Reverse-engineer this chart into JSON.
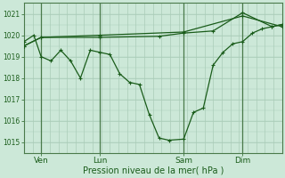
{
  "background_color": "#cce8d8",
  "grid_color": "#aaccb8",
  "line_color": "#1a5c1a",
  "marker_color": "#1a5c1a",
  "xlabel": "Pression niveau de la mer( hPa )",
  "ylim": [
    1014.5,
    1021.5
  ],
  "xlim": [
    0,
    210
  ],
  "yticks": [
    1015,
    1016,
    1017,
    1018,
    1019,
    1020,
    1021
  ],
  "xtick_labels": [
    "Ven",
    "Lun",
    "Sam",
    "Dim"
  ],
  "xtick_positions": [
    14,
    62,
    130,
    178
  ],
  "vline_positions": [
    14,
    62,
    130,
    178
  ],
  "series1_x": [
    0,
    8,
    14,
    22,
    30,
    38,
    46,
    54,
    62,
    70,
    78,
    86,
    94,
    102,
    110,
    118,
    130,
    138,
    146,
    154,
    162,
    170,
    178,
    186,
    194,
    202,
    210
  ],
  "series1_y": [
    1019.7,
    1020.0,
    1019.0,
    1018.8,
    1019.3,
    1018.8,
    1018.0,
    1019.3,
    1019.2,
    1019.1,
    1018.2,
    1017.8,
    1017.7,
    1016.3,
    1015.2,
    1015.1,
    1015.15,
    1016.4,
    1016.6,
    1018.6,
    1019.2,
    1019.6,
    1019.7,
    1020.1,
    1020.3,
    1020.4,
    1020.5
  ],
  "series2_x": [
    0,
    14,
    62,
    110,
    130,
    154,
    178,
    202,
    210
  ],
  "series2_y": [
    1019.5,
    1019.9,
    1019.9,
    1019.95,
    1020.1,
    1020.2,
    1021.05,
    1020.4,
    1020.5
  ],
  "series3_x": [
    0,
    14,
    62,
    130,
    178,
    210
  ],
  "series3_y": [
    1019.5,
    1019.9,
    1020.0,
    1020.15,
    1020.9,
    1020.4
  ]
}
